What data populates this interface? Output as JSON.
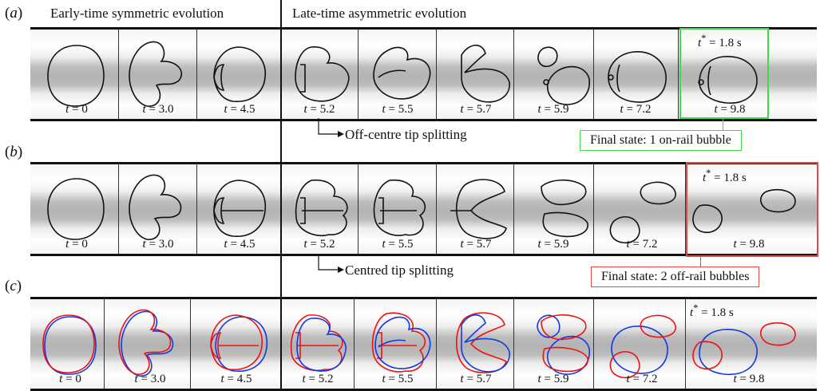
{
  "headers": {
    "early": "Early-time symmetric evolution",
    "late": "Late-time asymmetric evolution"
  },
  "rows": [
    {
      "label": "a",
      "times": [
        "0",
        "3.0",
        "4.5",
        "5.2",
        "5.5",
        "5.7",
        "5.9",
        "7.2",
        "9.8"
      ],
      "tstar": "= 1.8 s",
      "note": "Off-centre tip splitting",
      "final_state": "Final state: 1 on-rail bubble",
      "box_color": "#3fdc45"
    },
    {
      "label": "b",
      "times": [
        "0",
        "3.0",
        "4.5",
        "5.2",
        "5.5",
        "5.7",
        "5.9",
        "7.2",
        "9.8"
      ],
      "tstar": "= 1.8 s",
      "note": "Centred tip splitting",
      "final_state": "Final state: 2 off-rail bubbles",
      "box_color": "#e8474a"
    },
    {
      "label": "c",
      "times": [
        "0",
        "3.0",
        "4.5",
        "5.2",
        "5.5",
        "5.7",
        "5.9",
        "7.2",
        "9.8"
      ],
      "tstar": "= 1.8 s"
    }
  ],
  "symbols": {
    "t": "t",
    "tstar": "t",
    "star": "*",
    "eq": " = "
  },
  "colors": {
    "overlay_a": "#e11111",
    "overlay_b": "#1437e6"
  }
}
